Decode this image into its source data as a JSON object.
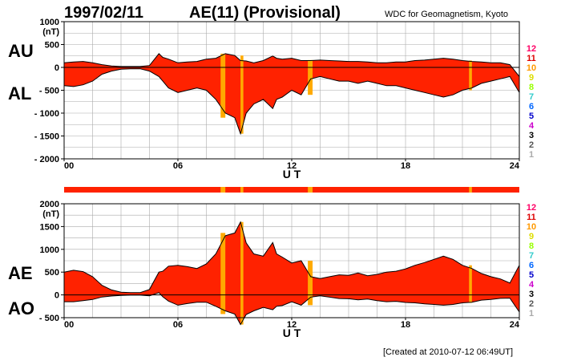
{
  "header": {
    "date": "1997/02/11",
    "index_title": "AE(11) (Provisional)",
    "source": "WDC for Geomagnetism, Kyoto"
  },
  "footer": {
    "created": "[Created at 2010-07-12 06:49UT]"
  },
  "legend": {
    "levels": [
      "12",
      "11",
      "10",
      "9",
      "8",
      "7",
      "6",
      "5",
      "4",
      "3",
      "2",
      "1"
    ],
    "colors": [
      "#ff0066",
      "#dd0000",
      "#ff9900",
      "#dddd00",
      "#99ff00",
      "#33cccc",
      "#0066ff",
      "#0000cc",
      "#cc00cc",
      "#000000",
      "#555555",
      "#aaaaaa"
    ]
  },
  "colors": {
    "fill_active": "#ff2200",
    "fill_gap": "#ffaa00",
    "grid": "#aaaaaa",
    "axis": "#000000"
  },
  "chart_data": [
    {
      "type": "area",
      "panel": "top",
      "labels": {
        "upper": "AU",
        "lower": "AL"
      },
      "xlabel": "U T",
      "x_ticks": [
        "00",
        "06",
        "12",
        "18",
        "24"
      ],
      "y_ticks": [
        "1000",
        "500",
        "0",
        "- 500",
        "- 1000",
        "- 1500",
        "- 2000"
      ],
      "y_unit": "(nT)",
      "xlim": [
        0,
        24
      ],
      "ylim": [
        -2000,
        1000
      ],
      "grid": true,
      "x": [
        0,
        0.5,
        1,
        1.5,
        2,
        2.5,
        3,
        3.5,
        4,
        4.5,
        5,
        5.2,
        5.5,
        6,
        6.5,
        7,
        7.5,
        8,
        8.5,
        9,
        9.3,
        9.6,
        10,
        10.5,
        11,
        11.2,
        11.5,
        12,
        12.5,
        13,
        13.5,
        14,
        14.5,
        15,
        15.5,
        16,
        16.5,
        17,
        17.5,
        18,
        18.5,
        19,
        19.5,
        20,
        20.5,
        21,
        21.5,
        22,
        22.5,
        23,
        23.5,
        24
      ],
      "series": [
        {
          "name": "AU",
          "values": [
            100,
            120,
            130,
            100,
            60,
            30,
            20,
            20,
            20,
            40,
            300,
            220,
            180,
            100,
            120,
            130,
            180,
            200,
            300,
            260,
            150,
            140,
            100,
            150,
            250,
            200,
            180,
            200,
            150,
            150,
            160,
            150,
            140,
            130,
            130,
            120,
            100,
            100,
            120,
            120,
            150,
            160,
            180,
            200,
            180,
            150,
            130,
            120,
            100,
            100,
            60,
            -200
          ]
        },
        {
          "name": "AL",
          "values": [
            -400,
            -420,
            -380,
            -300,
            -150,
            -80,
            -40,
            -30,
            -30,
            -80,
            -200,
            -300,
            -450,
            -550,
            -500,
            -450,
            -500,
            -700,
            -1000,
            -1100,
            -1450,
            -1000,
            -800,
            -700,
            -900,
            -700,
            -650,
            -500,
            -600,
            -250,
            -200,
            -250,
            -300,
            -300,
            -350,
            -300,
            -350,
            -400,
            -400,
            -450,
            -500,
            -550,
            -600,
            -650,
            -600,
            -500,
            -450,
            -350,
            -300,
            -250,
            -200,
            -550
          ]
        }
      ]
    },
    {
      "type": "area",
      "panel": "bottom",
      "labels": {
        "upper": "AE",
        "lower": "AO"
      },
      "xlabel": "U T",
      "x_ticks": [
        "00",
        "06",
        "12",
        "18",
        "24"
      ],
      "y_ticks": [
        "2000",
        "1500",
        "1000",
        "500",
        "0",
        "- 500"
      ],
      "y_unit": "(nT)",
      "xlim": [
        0,
        24
      ],
      "ylim": [
        -500,
        2000
      ],
      "grid": true,
      "x": [
        0,
        0.5,
        1,
        1.5,
        2,
        2.5,
        3,
        3.5,
        4,
        4.5,
        5,
        5.2,
        5.5,
        6,
        6.5,
        7,
        7.5,
        8,
        8.5,
        9,
        9.3,
        9.6,
        10,
        10.5,
        11,
        11.2,
        11.5,
        12,
        12.5,
        13,
        13.5,
        14,
        14.5,
        15,
        15.5,
        16,
        16.5,
        17,
        17.5,
        18,
        18.5,
        19,
        19.5,
        20,
        20.5,
        21,
        21.5,
        22,
        22.5,
        23,
        23.5,
        24
      ],
      "series": [
        {
          "name": "AE",
          "values": [
            500,
            540,
            510,
            400,
            210,
            110,
            60,
            50,
            50,
            120,
            500,
            520,
            630,
            650,
            620,
            580,
            680,
            900,
            1300,
            1360,
            1600,
            1140,
            900,
            850,
            1150,
            900,
            830,
            700,
            750,
            400,
            360,
            400,
            440,
            430,
            480,
            420,
            450,
            500,
            520,
            570,
            650,
            710,
            780,
            850,
            780,
            650,
            580,
            470,
            400,
            350,
            260,
            650
          ]
        },
        {
          "name": "AO",
          "values": [
            -150,
            -150,
            -125,
            -100,
            -45,
            -25,
            -10,
            -5,
            -5,
            -20,
            50,
            -40,
            -135,
            -225,
            -190,
            -160,
            -160,
            -250,
            -350,
            -420,
            -650,
            -430,
            -350,
            -275,
            -325,
            -250,
            -235,
            -150,
            -225,
            -50,
            -20,
            -50,
            -80,
            -85,
            -110,
            -90,
            -125,
            -150,
            -140,
            -165,
            -175,
            -195,
            -210,
            -225,
            -210,
            -175,
            -160,
            -115,
            -100,
            -75,
            -70,
            -375
          ]
        }
      ]
    }
  ],
  "data_gaps_ut": [
    [
      8.25,
      8.5
    ],
    [
      9.3,
      9.45
    ],
    [
      12.85,
      13.1
    ],
    [
      21.35,
      21.5
    ]
  ]
}
